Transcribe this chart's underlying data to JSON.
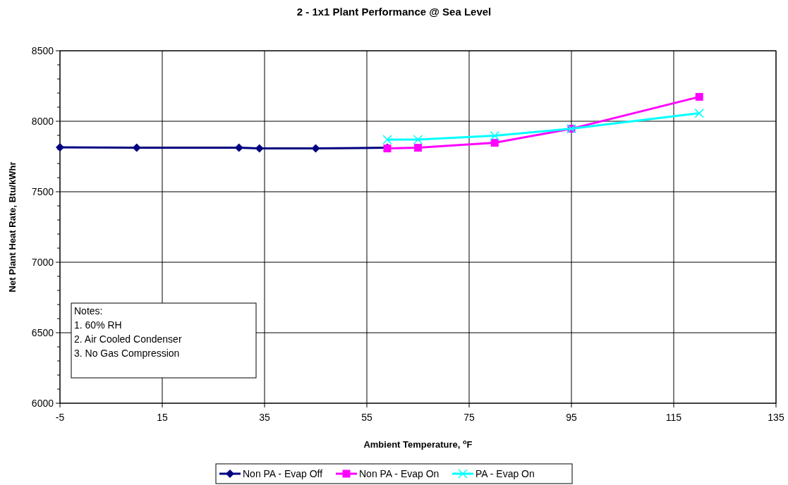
{
  "chart_data": {
    "type": "line",
    "title": "2 - 1x1 Plant Performance @ Sea Level",
    "xlabel": "Ambient Temperature, $^{o}$F",
    "ylabel": "Net Plant Heat Rate, Btu/kWhr",
    "xlim": [
      -5,
      135
    ],
    "xticks": [
      -5,
      15,
      35,
      55,
      75,
      95,
      115,
      135
    ],
    "ylim": [
      6000,
      8500
    ],
    "yticks": [
      6000,
      {
        "value": 6100,
        "label": null
      },
      {
        "value": 6200,
        "label": null
      },
      {
        "value": 6300,
        "label": null
      },
      {
        "value": 6400,
        "label": null
      },
      6500,
      {
        "value": 6600,
        "label": null
      },
      {
        "value": 6700,
        "label": null
      },
      {
        "value": 6800,
        "label": null
      },
      {
        "value": 6900,
        "label": null
      },
      7000,
      {
        "value": 7100,
        "label": null
      },
      {
        "value": 7200,
        "label": null
      },
      {
        "value": 7300,
        "label": null
      },
      {
        "value": 7400,
        "label": null
      },
      7500,
      {
        "value": 7600,
        "label": null
      },
      {
        "value": 7700,
        "label": null
      },
      {
        "value": 7800,
        "label": null
      },
      {
        "value": 7900,
        "label": null
      },
      8000,
      {
        "value": 8100,
        "label": null
      },
      {
        "value": 8200,
        "label": null
      },
      {
        "value": 8300,
        "label": null
      },
      {
        "value": 8400,
        "label": null
      },
      8500
    ],
    "grid": true,
    "legend": "bottom",
    "line_style": "solid",
    "annotations": [
      "Notes:\n1. 60% RH\n2. Air Cooled Condenser\n3. No Gas Compression"
    ],
    "series": [
      {
        "name": "Non PA - Evap Off",
        "color": "#000080",
        "marker": "diamond",
        "x": [
          -5,
          10,
          30,
          34,
          45,
          59
        ],
        "values": [
          7815,
          7812,
          7812,
          7808,
          7808,
          7812
        ]
      },
      {
        "name": "Non PA - Evap On",
        "color": "#ff00ff",
        "marker": "square",
        "x": [
          59,
          65,
          80,
          95,
          120
        ],
        "values": [
          7807,
          7812,
          7847,
          7947,
          8173
        ]
      },
      {
        "name": "PA - Evap On",
        "color": "#00ffff",
        "marker": "cross",
        "x": [
          59,
          65,
          80,
          95,
          120
        ],
        "values": [
          7870,
          7870,
          7897,
          7947,
          8057
        ]
      }
    ]
  }
}
